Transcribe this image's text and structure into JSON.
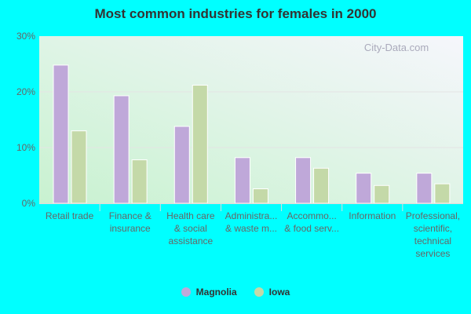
{
  "chart_data": {
    "type": "bar",
    "title": "Most common industries for females in 2000",
    "categories": [
      [
        "Retail trade"
      ],
      [
        "Finance &",
        "insurance"
      ],
      [
        "Health care",
        "& social",
        "assistance"
      ],
      [
        "Administra...",
        "& waste m..."
      ],
      [
        "Accommo...",
        "& food serv..."
      ],
      [
        "Information"
      ],
      [
        "Professional,",
        "scientific,",
        "technical",
        "services"
      ]
    ],
    "series": [
      {
        "name": "Magnolia",
        "color": "#bfa8d9",
        "values": [
          24.8,
          19.3,
          13.8,
          8.2,
          8.2,
          5.4,
          5.4
        ]
      },
      {
        "name": "Iowa",
        "color": "#c4d9a8",
        "values": [
          13.0,
          7.8,
          21.2,
          2.6,
          6.3,
          3.2,
          3.5
        ]
      }
    ],
    "yticks": [
      "0%",
      "10%",
      "20%",
      "30%"
    ],
    "ylim": [
      0,
      30
    ],
    "grid": true,
    "legend": "bottom",
    "watermark": "City-Data.com"
  }
}
